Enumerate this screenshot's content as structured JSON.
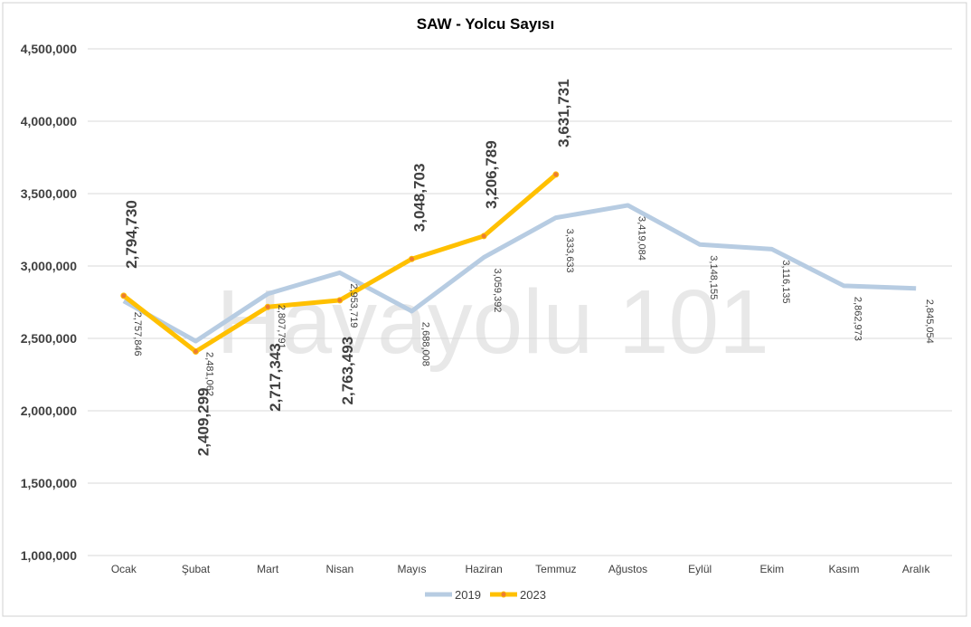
{
  "chart_data": {
    "type": "line",
    "title": "SAW - Yolcu Sayısı",
    "watermark": "Havayolu 101",
    "categories": [
      "Ocak",
      "Şubat",
      "Mart",
      "Nisan",
      "Mayıs",
      "Haziran",
      "Temmuz",
      "Ağustos",
      "Eylül",
      "Ekim",
      "Kasım",
      "Aralık"
    ],
    "series": [
      {
        "name": "2019",
        "color": "#b7cce2",
        "values": [
          2757846,
          2481062,
          2807791,
          2953719,
          2688008,
          3059392,
          3333633,
          3419084,
          3148155,
          3116135,
          2862973,
          2845054
        ],
        "value_labels": [
          "2,757,846",
          "2,481,062",
          "2,807,791",
          "2,953,719",
          "2,688,008",
          "3,059,392",
          "3,333,633",
          "3,419,084",
          "3,148,155",
          "3,116,135",
          "2,862,973",
          "2,845,054"
        ]
      },
      {
        "name": "2023",
        "color": "#ffc000",
        "values": [
          2794730,
          2409299,
          2717343,
          2763493,
          3048703,
          3206789,
          3631731,
          null,
          null,
          null,
          null,
          null
        ],
        "value_labels": [
          "2,794,730",
          "2,409,299",
          "2,717,343",
          "2,763,493",
          "3,048,703",
          "3,206,789",
          "3,631,731",
          null,
          null,
          null,
          null,
          null
        ]
      }
    ],
    "ylim": [
      1000000,
      4500000
    ],
    "yticks": [
      {
        "value": 1000000,
        "label": "1,000,000"
      },
      {
        "value": 1500000,
        "label": "1,500,000"
      },
      {
        "value": 2000000,
        "label": "2,000,000"
      },
      {
        "value": 2500000,
        "label": "2,500,000"
      },
      {
        "value": 3000000,
        "label": "3,000,000"
      },
      {
        "value": 3500000,
        "label": "3,500,000"
      },
      {
        "value": 4000000,
        "label": "4,000,000"
      },
      {
        "value": 4500000,
        "label": "4,500,000"
      }
    ],
    "grid": true,
    "legend": "bottom"
  }
}
